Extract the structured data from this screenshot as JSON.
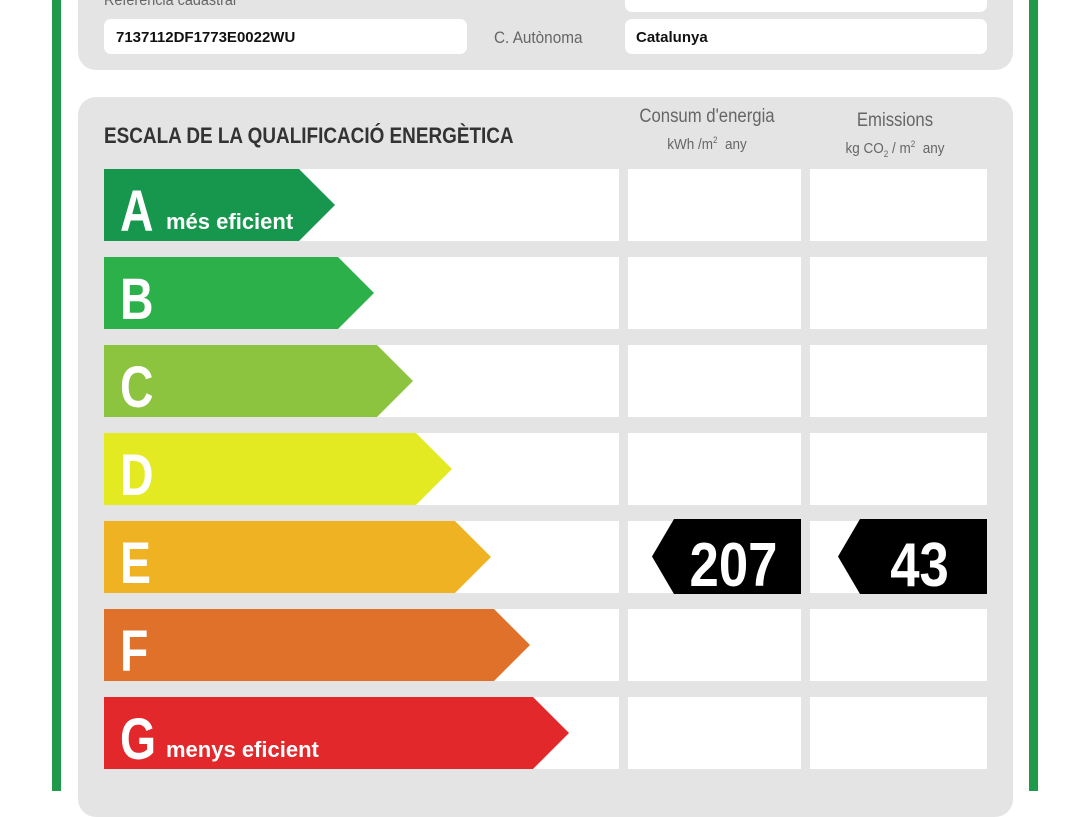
{
  "header": {
    "cadastral_label": "Referència cadastral",
    "cadastral_value": "7137112DF1773E0022WU",
    "region_label": "C. Autònoma",
    "region_value": "Catalunya"
  },
  "scale": {
    "title": "ESCALA DE LA QUALIFICACIÓ ENERGÈTICA",
    "consumption_header": "Consum d'energia",
    "consumption_unit": [
      "kWh /m",
      "2",
      "any"
    ],
    "emissions_header": "Emissions",
    "emissions_unit": [
      "kg CO",
      "2",
      "/ m",
      "2",
      "any"
    ],
    "classes": [
      {
        "letter": "A",
        "caption": "més eficient",
        "color": "#17974d"
      },
      {
        "letter": "B",
        "color": "#2cb04a"
      },
      {
        "letter": "C",
        "color": "#8cc43f"
      },
      {
        "letter": "D",
        "color": "#e4ea22"
      },
      {
        "letter": "E",
        "color": "#efb223",
        "consumption": 207,
        "emissions": 43
      },
      {
        "letter": "F",
        "color": "#df712b"
      },
      {
        "letter": "G",
        "caption": "menys eficient",
        "color": "#e2282b"
      }
    ]
  }
}
